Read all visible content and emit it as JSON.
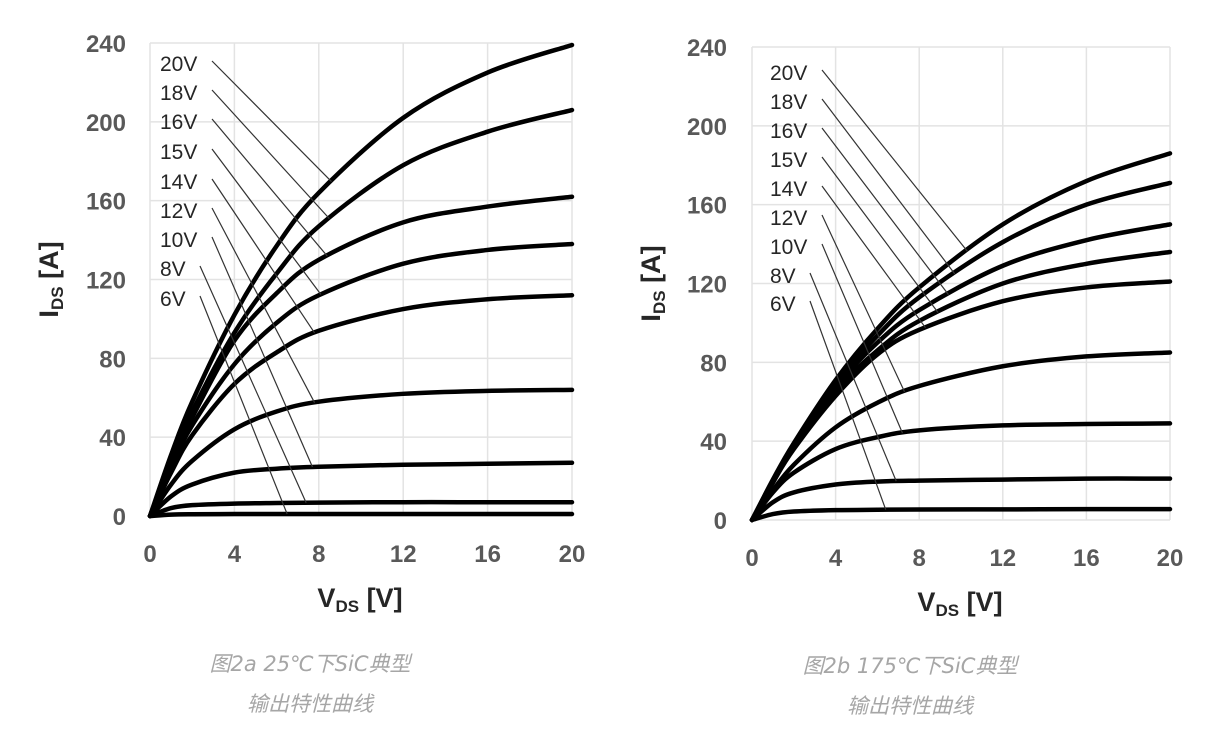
{
  "chart_data": [
    {
      "type": "line",
      "xlabel": {
        "main": "V",
        "sub": "DS",
        "unit": " [V]"
      },
      "ylabel": {
        "main": "I",
        "sub": "DS",
        "unit": " [A]"
      },
      "xlim": [
        0,
        20
      ],
      "ylim": [
        0,
        240
      ],
      "xticks": [
        "0",
        "4",
        "8",
        "12",
        "16",
        "20"
      ],
      "yticks": [
        "0",
        "40",
        "80",
        "120",
        "160",
        "200",
        "240"
      ],
      "grid": true,
      "x": [
        0,
        1,
        2,
        4,
        6,
        8,
        12,
        16,
        20
      ],
      "series": [
        {
          "name": "20V",
          "values": [
            0,
            31,
            58,
            102,
            137,
            164,
            202,
            225,
            239
          ]
        },
        {
          "name": "18V",
          "values": [
            0,
            28,
            53,
            93,
            123,
            147,
            178,
            195,
            206
          ]
        },
        {
          "name": "16V",
          "values": [
            0,
            28,
            50,
            89,
            113,
            130,
            149,
            157,
            162
          ]
        },
        {
          "name": "15V",
          "values": [
            0,
            25,
            46,
            77,
            98,
            112,
            128,
            135,
            138
          ]
        },
        {
          "name": "14V",
          "values": [
            0,
            22,
            41,
            67,
            83,
            94,
            105,
            110,
            112
          ]
        },
        {
          "name": "12V",
          "values": [
            0,
            16,
            28,
            44,
            53,
            58,
            62,
            63.5,
            64
          ]
        },
        {
          "name": "10V",
          "values": [
            0,
            10,
            16,
            22,
            24,
            25,
            26,
            26.5,
            27
          ]
        },
        {
          "name": "8V",
          "values": [
            0,
            4,
            5.5,
            6.3,
            6.6,
            6.8,
            7,
            7,
            7
          ]
        },
        {
          "name": "6V",
          "values": [
            0,
            0.7,
            0.9,
            1,
            1,
            1,
            1,
            1,
            1
          ]
        }
      ],
      "color": "#000000"
    },
    {
      "type": "line",
      "xlabel": {
        "main": "V",
        "sub": "DS",
        "unit": " [V]"
      },
      "ylabel": {
        "main": "I",
        "sub": "DS",
        "unit": " [A]"
      },
      "xlim": [
        0,
        20
      ],
      "ylim": [
        0,
        240
      ],
      "xticks": [
        "0",
        "4",
        "8",
        "12",
        "16",
        "20"
      ],
      "yticks": [
        "0",
        "40",
        "80",
        "120",
        "160",
        "200",
        "240"
      ],
      "grid": true,
      "x": [
        0,
        1,
        2,
        4,
        6,
        8,
        12,
        16,
        20
      ],
      "series": [
        {
          "name": "20V",
          "values": [
            0,
            20.5,
            39,
            71,
            97,
            118,
            150,
            172,
            186
          ]
        },
        {
          "name": "18V",
          "values": [
            0,
            20,
            38,
            69,
            93.5,
            113,
            141,
            160,
            171
          ]
        },
        {
          "name": "16V",
          "values": [
            0,
            19.5,
            38,
            67.5,
            90,
            106.5,
            129,
            142,
            150
          ]
        },
        {
          "name": "15V",
          "values": [
            0,
            19,
            37.5,
            65.5,
            86,
            101,
            120,
            130,
            136
          ]
        },
        {
          "name": "14V",
          "values": [
            0,
            19,
            36,
            63,
            84,
            96.5,
            111,
            118,
            121
          ]
        },
        {
          "name": "12V",
          "values": [
            0,
            15,
            28,
            47,
            59.5,
            68,
            78,
            83,
            85
          ]
        },
        {
          "name": "10V",
          "values": [
            0,
            14,
            24,
            36,
            42,
            45.5,
            48,
            48.7,
            49
          ]
        },
        {
          "name": "8V",
          "values": [
            0,
            9,
            14,
            18,
            19.5,
            20,
            20.5,
            21,
            21
          ]
        },
        {
          "name": "6V",
          "values": [
            0,
            3,
            4.3,
            5,
            5.2,
            5.3,
            5.4,
            5.5,
            5.5
          ]
        }
      ],
      "color": "#000000"
    }
  ],
  "captions": [
    {
      "line1": "图2a 25℃下SiC典型",
      "line2": "输出特性曲线"
    },
    {
      "line1": "图2b 175℃下SiC典型",
      "line2": "输出特性曲线"
    }
  ]
}
